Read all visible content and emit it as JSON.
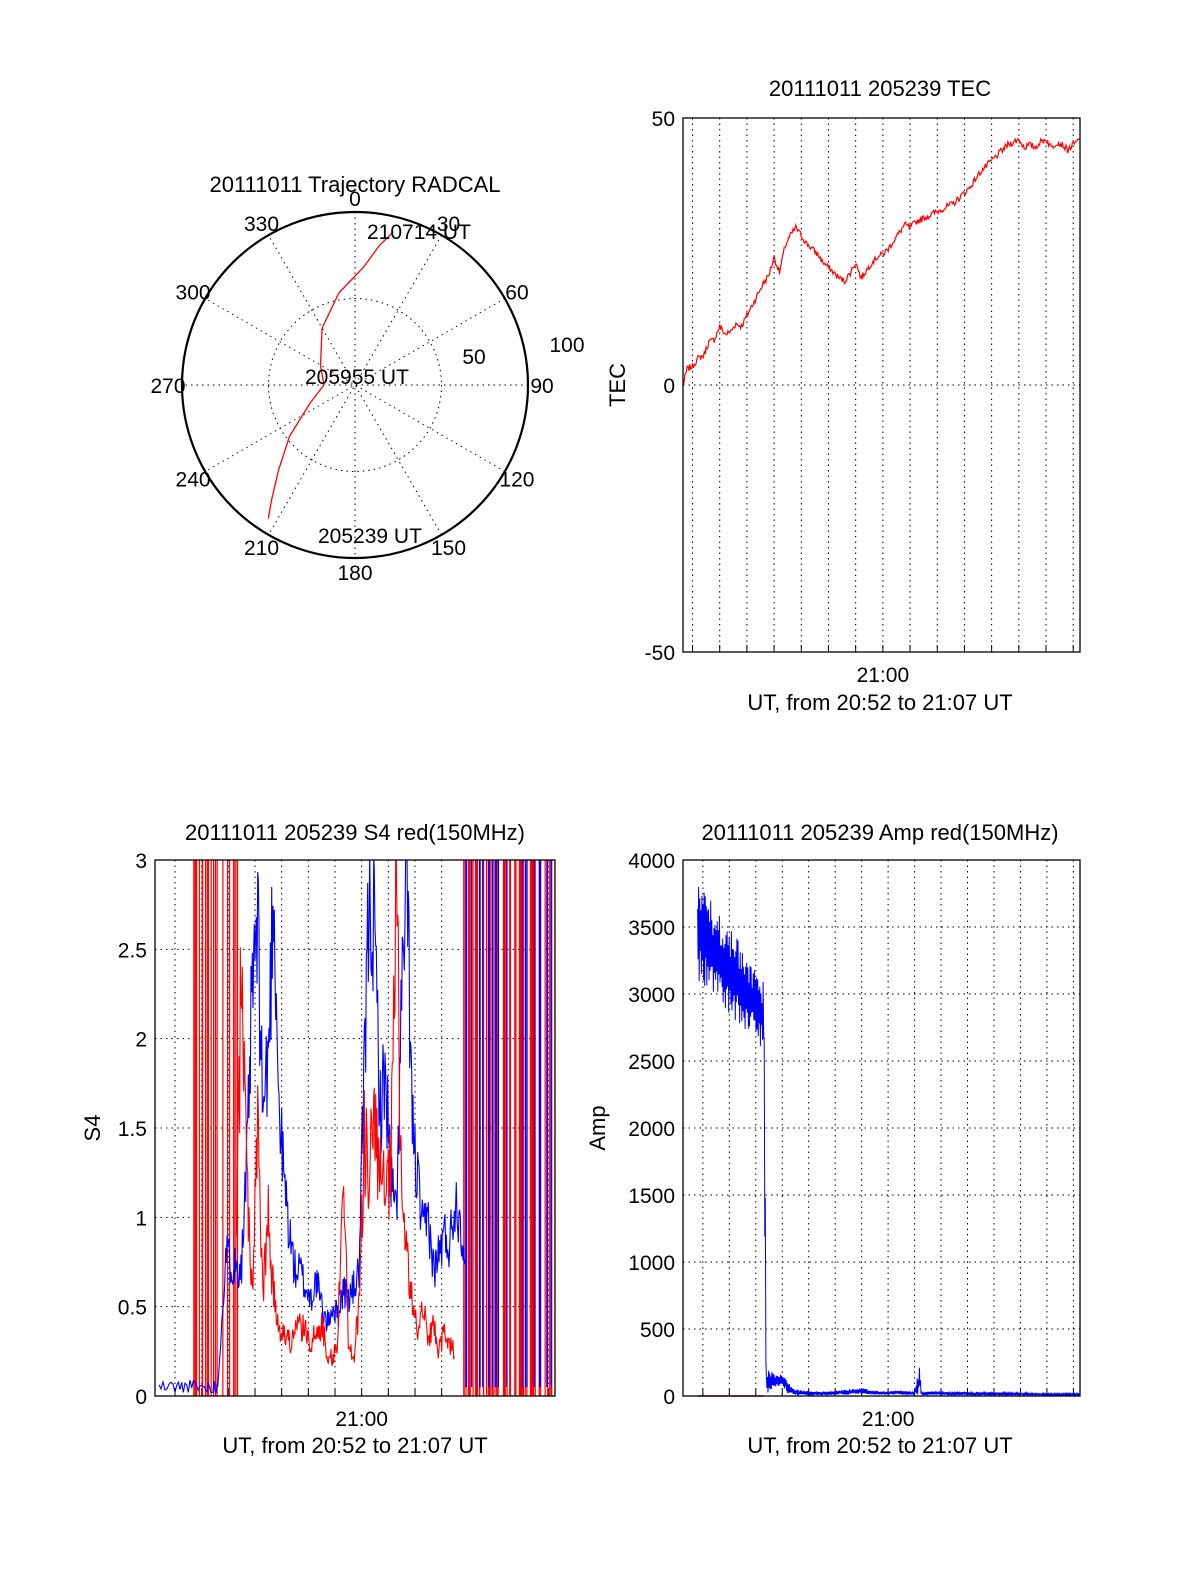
{
  "figure": {
    "colors": {
      "red": "#ff0000",
      "blue": "#0000ff",
      "black": "#000000"
    }
  },
  "chart_data": [
    {
      "id": "polar",
      "type": "scatter",
      "title": "20111011 Trajectory RADCAL",
      "angle_labels": [
        "0",
        "30",
        "60",
        "90",
        "120",
        "150",
        "180",
        "210",
        "240",
        "270",
        "300",
        "330"
      ],
      "radius_labels": [
        "50",
        "100"
      ],
      "radius_range": [
        0,
        100
      ],
      "grid": true,
      "trajectory": {
        "name": "",
        "azimuth_deg": [
          14,
          10,
          4,
          350,
          330,
          300,
          270,
          248,
          232,
          222,
          216,
          213
        ],
        "radius": [
          91,
          82,
          68,
          54,
          38,
          23,
          18,
          28,
          48,
          66,
          82,
          92
        ]
      },
      "annotations": [
        {
          "text": "210714 UT",
          "azimuth_deg": 17,
          "radius": 90
        },
        {
          "text": "205955 UT",
          "azimuth_deg": 0,
          "radius": 0
        },
        {
          "text": "205239 UT",
          "azimuth_deg": 210,
          "radius": 95
        }
      ]
    },
    {
      "id": "tec",
      "type": "line",
      "title": "20111011 205239 TEC",
      "xlabel": "UT, from 20:52 to 21:07 UT",
      "ylabel": "TEC",
      "x_tick_labels": [
        {
          "minute": 60,
          "label": "21:00"
        }
      ],
      "y_tick_labels": [
        "-50",
        "0",
        "50"
      ],
      "xlim_minutes": [
        52.65,
        67.25
      ],
      "ylim": [
        -50,
        50
      ],
      "grid": true,
      "series": [
        {
          "name": "",
          "color": "red",
          "x_minutes": [
            52.65,
            52.8,
            53.0,
            53.2,
            53.4,
            53.6,
            53.8,
            54.0,
            54.2,
            54.4,
            54.6,
            54.8,
            55.0,
            55.2,
            55.4,
            55.6,
            55.8,
            56.0,
            56.2,
            56.4,
            56.6,
            56.8,
            57.0,
            57.2,
            57.4,
            57.6,
            57.8,
            58.0,
            58.2,
            58.4,
            58.6,
            58.8,
            59.0,
            59.2,
            59.4,
            59.6,
            59.8,
            60.0,
            60.2,
            60.4,
            60.6,
            60.8,
            61.0,
            61.2,
            61.4,
            61.6,
            61.8,
            62.0,
            62.2,
            62.4,
            62.6,
            62.8,
            63.0,
            63.2,
            63.4,
            63.6,
            63.8,
            64.0,
            64.2,
            64.4,
            64.6,
            64.8,
            65.0,
            65.2,
            65.4,
            65.6,
            65.8,
            66.0,
            66.2,
            66.4,
            66.6,
            66.8,
            67.0,
            67.25
          ],
          "y": [
            0,
            3,
            3.5,
            5,
            5.5,
            8,
            8.5,
            11,
            9.5,
            10,
            11.5,
            11,
            13,
            15,
            17,
            19,
            20.5,
            24,
            21,
            26,
            28,
            29.5,
            28,
            26.5,
            25.5,
            24.5,
            23,
            22,
            21,
            20,
            19.5,
            21,
            23,
            20,
            21.5,
            23,
            24,
            24.5,
            25.5,
            27,
            28.5,
            30,
            29.5,
            30.5,
            31,
            31.5,
            32,
            32.5,
            33,
            33.5,
            34,
            35,
            36,
            37,
            38.5,
            40,
            41,
            42,
            43,
            44,
            45,
            45.5,
            46,
            44.5,
            45,
            44.5,
            45.5,
            46,
            44.5,
            45.5,
            45,
            44,
            45,
            46
          ]
        }
      ]
    },
    {
      "id": "s4",
      "type": "line",
      "title": "20111011 205239 S4 red(150MHz)",
      "xlabel": "UT, from 20:52 to 21:07 UT",
      "ylabel": "S4",
      "x_tick_labels": [
        {
          "minute": 60,
          "label": "21:00"
        }
      ],
      "y_tick_labels": [
        "0",
        "0.5",
        "1",
        "1.5",
        "2",
        "2.5",
        "3"
      ],
      "xlim_minutes": [
        52.25,
        67.25
      ],
      "ylim": [
        0,
        3
      ],
      "grid": true,
      "series": [
        {
          "name": "",
          "color": "red",
          "x_minutes": [
            55.3,
            55.5,
            55.7,
            55.9,
            56.1,
            56.3,
            56.5,
            56.7,
            56.9,
            57.1,
            57.3,
            57.5,
            57.7,
            57.9,
            58.1,
            58.3,
            58.5,
            58.7,
            58.9,
            59.1,
            59.3,
            59.5,
            59.7,
            59.9,
            60.1,
            60.3,
            60.5,
            60.7,
            60.9,
            61.1,
            61.3,
            61.5,
            61.7,
            61.9,
            62.1,
            62.3,
            62.5,
            62.7,
            62.9,
            63.1,
            63.3,
            63.5
          ],
          "y": [
            0.8,
            2.5,
            1.2,
            0.6,
            1.5,
            0.55,
            1.0,
            0.55,
            0.4,
            0.35,
            0.3,
            0.35,
            0.4,
            0.35,
            0.3,
            0.35,
            0.4,
            0.25,
            0.2,
            0.3,
            1.35,
            0.3,
            0.2,
            0.5,
            1.4,
            1.3,
            1.5,
            1.2,
            1.1,
            1.25,
            2.9,
            1.1,
            0.8,
            0.5,
            0.35,
            0.55,
            0.3,
            0.4,
            0.25,
            0.35,
            0.3,
            0.25
          ]
        },
        {
          "name": "",
          "color": "blue",
          "x_minutes": [
            52.4,
            53.0,
            53.5,
            54.0,
            54.4,
            54.6,
            54.9,
            55.1,
            55.3,
            55.5,
            55.7,
            55.9,
            56.1,
            56.3,
            56.5,
            56.7,
            56.9,
            57.1,
            57.3,
            57.5,
            57.7,
            57.9,
            58.1,
            58.3,
            58.5,
            58.7,
            58.9,
            59.1,
            59.3,
            59.5,
            59.7,
            59.9,
            60.1,
            60.3,
            60.5,
            60.7,
            60.9,
            61.1,
            61.3,
            61.5,
            61.7,
            61.9,
            62.1,
            62.3,
            62.5,
            62.7,
            62.9,
            63.1,
            63.3,
            63.5,
            63.7,
            63.9
          ],
          "y": [
            0.05,
            0.05,
            0.05,
            0.05,
            0.05,
            0.05,
            0.8,
            0.75,
            0.72,
            0.75,
            1.3,
            2.3,
            2.6,
            1.6,
            1.9,
            2.9,
            1.6,
            1.2,
            0.9,
            0.7,
            0.7,
            0.6,
            0.55,
            0.65,
            0.5,
            0.4,
            0.5,
            0.45,
            0.6,
            0.55,
            0.6,
            0.7,
            1.8,
            2.9,
            2.5,
            1.6,
            1.8,
            1.2,
            1.0,
            2.2,
            2.9,
            1.5,
            1.2,
            0.9,
            1.0,
            0.7,
            0.8,
            0.9,
            0.85,
            1.1,
            1.0,
            0.75
          ]
        }
      ]
    },
    {
      "id": "amp",
      "type": "line",
      "title": "20111011 205239 Amp red(150MHz)",
      "xlabel": "UT, from 20:52 to 21:07 UT",
      "ylabel": "Amp",
      "x_tick_labels": [
        {
          "minute": 60,
          "label": "21:00"
        }
      ],
      "y_tick_labels": [
        "0",
        "500",
        "1000",
        "1500",
        "2000",
        "2500",
        "3000",
        "3500",
        "4000"
      ],
      "xlim_minutes": [
        52.25,
        67.25
      ],
      "ylim": [
        0,
        4000
      ],
      "grid": true,
      "series": [
        {
          "name": "",
          "color": "blue",
          "x_minutes": [
            52.8,
            53.0,
            53.5,
            54.0,
            54.5,
            55.0,
            55.3,
            55.35,
            55.4,
            55.6,
            55.8,
            56.0,
            56.2,
            56.4,
            56.8,
            57.5,
            58.5,
            59.0,
            59.5,
            60.0,
            60.5,
            61.0,
            61.2,
            61.25,
            61.3,
            61.6,
            62.0,
            63.0,
            64.0,
            65.0,
            66.0,
            67.25
          ],
          "y_upper": [
            3850,
            3800,
            3650,
            3500,
            3350,
            3200,
            3100,
            2000,
            200,
            180,
            170,
            160,
            120,
            60,
            40,
            30,
            50,
            60,
            40,
            35,
            40,
            30,
            240,
            40,
            30,
            35,
            30,
            30,
            30,
            25,
            20,
            20
          ],
          "y_lower": [
            3100,
            3050,
            2950,
            2850,
            2750,
            2650,
            2550,
            100,
            0,
            50,
            60,
            70,
            20,
            5,
            5,
            5,
            10,
            15,
            10,
            10,
            10,
            10,
            10,
            10,
            5,
            10,
            10,
            5,
            5,
            5,
            5,
            5
          ]
        },
        {
          "name": "",
          "color": "red",
          "x_minutes": [
            52.8,
            55.3
          ],
          "y": [
            0,
            0
          ]
        }
      ]
    }
  ]
}
